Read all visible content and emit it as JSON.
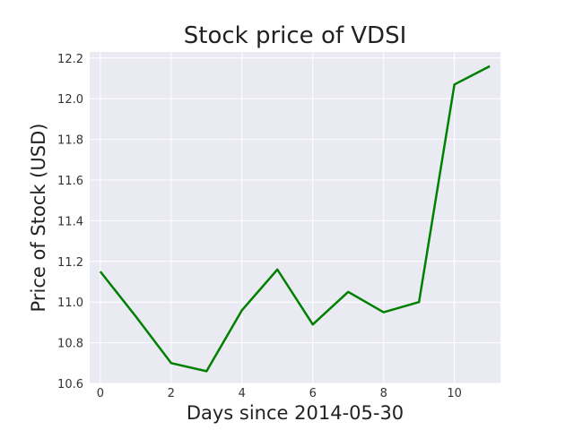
{
  "chart_data": {
    "type": "line",
    "title": "Stock price of VDSI",
    "xlabel": "Days since 2014-05-30",
    "ylabel": "Price of Stock (USD)",
    "xlim": [
      -0.3,
      11.3
    ],
    "ylim": [
      10.6,
      12.23
    ],
    "xticks": [
      0,
      2,
      4,
      6,
      8,
      10
    ],
    "xtick_labels": [
      "0",
      "2",
      "4",
      "6",
      "8",
      "10"
    ],
    "yticks": [
      10.6,
      10.8,
      11.0,
      11.2,
      11.4,
      11.6,
      11.8,
      12.0,
      12.2
    ],
    "ytick_labels": [
      "10.6",
      "10.8",
      "11.0",
      "11.2",
      "11.4",
      "11.6",
      "11.8",
      "12.0",
      "12.2"
    ],
    "grid": true,
    "series": [
      {
        "color": "#008000",
        "x": [
          0,
          1,
          2,
          3,
          4,
          5,
          6,
          7,
          8,
          9,
          10,
          11
        ],
        "values": [
          11.15,
          10.93,
          10.7,
          10.66,
          10.96,
          11.16,
          10.89,
          11.05,
          10.95,
          11.0,
          12.07,
          12.16
        ]
      }
    ],
    "style": {
      "plot_background": "#eaeaf2",
      "grid_color": "#ffffff"
    }
  }
}
